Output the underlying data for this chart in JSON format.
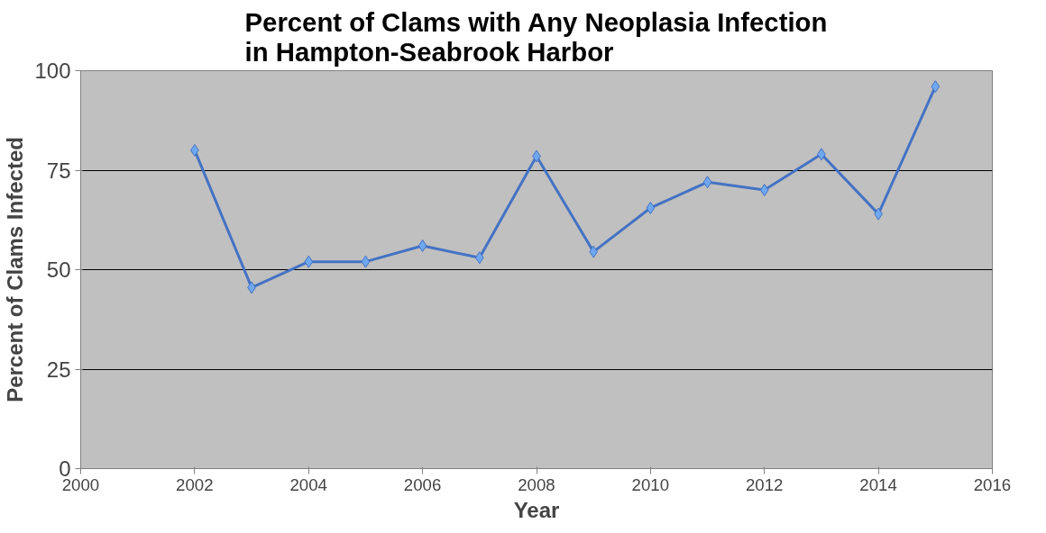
{
  "chart_data": {
    "type": "line",
    "title": "Percent of Clams with Any Neoplasia Infection\nin  Hampton-Seabrook Harbor",
    "xlabel": "Year",
    "ylabel": "Percent of Clams Infected",
    "x": [
      2002,
      2003,
      2004,
      2005,
      2006,
      2007,
      2008,
      2009,
      2010,
      2011,
      2012,
      2013,
      2014,
      2015
    ],
    "series": [
      {
        "color": "#4472c4",
        "values": [
          80,
          45.5,
          52,
          52,
          56,
          53,
          78.5,
          54.5,
          65.5,
          72,
          70,
          79,
          64,
          96
        ]
      }
    ],
    "xlim": [
      2000,
      2016
    ],
    "xticks": [
      2000,
      2002,
      2004,
      2006,
      2008,
      2010,
      2012,
      2014,
      2016
    ],
    "ylim": [
      0,
      100
    ],
    "yticks": [
      0,
      25,
      50,
      75,
      100
    ],
    "grid": "y",
    "marker": "diamond",
    "line_style": "solid"
  }
}
